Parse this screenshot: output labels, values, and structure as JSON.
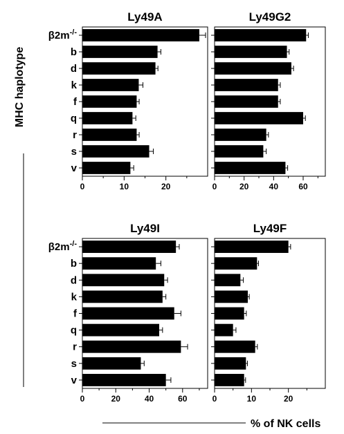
{
  "figure": {
    "ylabel": "MHC haplotype",
    "xlabel": "% of NK cells",
    "colors": {
      "bar": "#000000",
      "axis": "#000000",
      "background": "#ffffff"
    }
  },
  "chart_data": [
    {
      "type": "bar",
      "orientation": "horizontal",
      "title": "Ly49A",
      "categories": [
        "β2m-/-",
        "b",
        "d",
        "k",
        "f",
        "q",
        "r",
        "s",
        "v"
      ],
      "values": [
        28,
        18,
        17.5,
        13.5,
        13,
        12,
        13,
        16,
        11.5
      ],
      "errors": [
        1.5,
        0.8,
        0.6,
        1,
        0.6,
        0.8,
        0.6,
        1,
        0.8
      ],
      "xlim": [
        0,
        30
      ],
      "xticks": [
        0,
        10,
        20
      ]
    },
    {
      "type": "bar",
      "orientation": "horizontal",
      "title": "Ly49G2",
      "categories": [
        "β2m-/-",
        "b",
        "d",
        "k",
        "f",
        "q",
        "r",
        "s",
        "v"
      ],
      "values": [
        62,
        49,
        52,
        43,
        43,
        60,
        35,
        33,
        48
      ],
      "errors": [
        1.5,
        1.5,
        1.5,
        1.5,
        1.5,
        1.5,
        1.5,
        2,
        1.5
      ],
      "xlim": [
        0,
        75
      ],
      "xticks": [
        0,
        20,
        40,
        60
      ]
    },
    {
      "type": "bar",
      "orientation": "horizontal",
      "title": "Ly49I",
      "categories": [
        "β2m-/-",
        "b",
        "d",
        "k",
        "f",
        "q",
        "r",
        "s",
        "v"
      ],
      "values": [
        56,
        44,
        49,
        48,
        55,
        46,
        59,
        35,
        50
      ],
      "errors": [
        2,
        3,
        2,
        2,
        4,
        2,
        4,
        2,
        3
      ],
      "xlim": [
        0,
        75
      ],
      "xticks": [
        0,
        20,
        40,
        60
      ]
    },
    {
      "type": "bar",
      "orientation": "horizontal",
      "title": "Ly49F",
      "categories": [
        "β2m-/-",
        "b",
        "d",
        "k",
        "f",
        "q",
        "r",
        "s",
        "v"
      ],
      "values": [
        20,
        11.5,
        7,
        9,
        8,
        5,
        11,
        8.5,
        8
      ],
      "errors": [
        0.6,
        0.4,
        0.8,
        0.4,
        0.6,
        0.8,
        0.6,
        0.4,
        0.4
      ],
      "xlim": [
        0,
        30
      ],
      "xticks": [
        0,
        10,
        20
      ]
    }
  ]
}
